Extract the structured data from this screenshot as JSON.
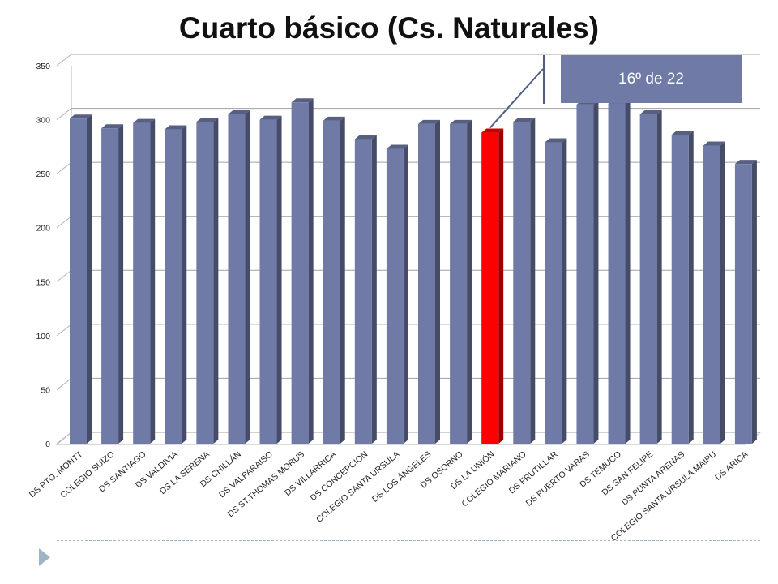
{
  "title": "Cuarto básico (Cs. Naturales)",
  "callout": {
    "text": "16º de 22"
  },
  "colors": {
    "bar": "#6f7ba6",
    "highlight": "#ff0000",
    "accent_line": "#9fb4c4"
  },
  "chart_data": {
    "type": "bar",
    "title": "",
    "xlabel": "",
    "ylabel": "",
    "ylim": [
      0,
      350
    ],
    "yticks": [
      0,
      50,
      100,
      150,
      200,
      250,
      300,
      350
    ],
    "grid": true,
    "legend": "none",
    "highlight_category": "DS LA UNIÓN",
    "categories": [
      "DS PTO. MONTT",
      "COLEGIO SUIZO",
      "DS SANTIAGO",
      "DS VALDIVIA",
      "DS LA SERENA",
      "DS CHILLÁN",
      "DS VALPARAISO",
      "DS ST.THOMAS MORUS",
      "DS VILLARRICA",
      "DS CONCEPCION",
      "COLEGIO SANTA URSULA",
      "DS LOS ÁNGELES",
      "DS OSORNO",
      "DS LA UNIÓN",
      "COLEGIO MARIANO",
      "DS FRUTILLAR",
      "DS PUERTO VARAS",
      "DS TEMUCO",
      "DS SAN FELIPE",
      "DS PUNTA ARENAS",
      "COLEGIO SANTA URSULA MAIPU",
      "DS ARICA"
    ],
    "values": [
      301,
      292,
      297,
      291,
      298,
      305,
      300,
      316,
      299,
      282,
      273,
      296,
      296,
      288,
      298,
      279,
      314,
      315,
      305,
      286,
      276,
      259
    ]
  }
}
